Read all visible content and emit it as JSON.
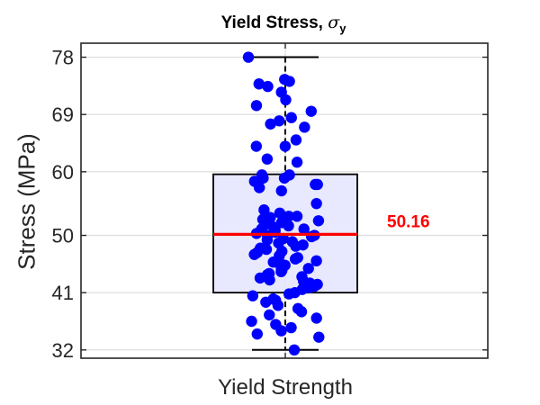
{
  "chart_data": {
    "type": "box",
    "title": "Yield Stress,",
    "title_symbol": "σ",
    "title_subscript": "y",
    "xlabel": "",
    "ylabel": "Stress (MPa)",
    "categories": [
      "Yield Strength"
    ],
    "yticks": [
      32,
      41,
      50,
      60,
      69,
      78
    ],
    "ylim": [
      30.7,
      80.2
    ],
    "grid": true,
    "box": {
      "min": 32,
      "q1": 41,
      "median": 50.16,
      "q3": 59.6,
      "max": 78,
      "median_label": "50.16"
    },
    "points": [
      78,
      32,
      74.5,
      74.2,
      73.8,
      73.4,
      72.5,
      71.3,
      70.4,
      69.5,
      68.5,
      68,
      67.5,
      67,
      65,
      64,
      64,
      62,
      61.5,
      59.5,
      59.5,
      59,
      59,
      58.5,
      58,
      58,
      57.5,
      57,
      55,
      54,
      53.5,
      53,
      53,
      52.8,
      52.5,
      52.3,
      52,
      51.8,
      51.5,
      51.3,
      51,
      51,
      50.8,
      50.5,
      50.3,
      50,
      50,
      49.8,
      49.5,
      49.3,
      49,
      48.8,
      48.5,
      48.3,
      48,
      47.8,
      47.5,
      47.3,
      47,
      46.8,
      46.5,
      46.3,
      46,
      45.8,
      45.5,
      45.3,
      45,
      44.8,
      44.5,
      44.3,
      44,
      43.8,
      43.5,
      43.3,
      43,
      42.8,
      42.5,
      42.3,
      42,
      41.8,
      41.5,
      41,
      40.8,
      40.5,
      40,
      39.8,
      39.5,
      39,
      38.5,
      38,
      37.5,
      37,
      36.5,
      36,
      35.5,
      35,
      34.5,
      34
    ],
    "colors": {
      "box_fill": "#e5e5ff",
      "box_edge": "#000000",
      "median": "#ff0000",
      "points": "#0000ff",
      "grid": "#dcdcdc",
      "axis": "#262626"
    }
  }
}
